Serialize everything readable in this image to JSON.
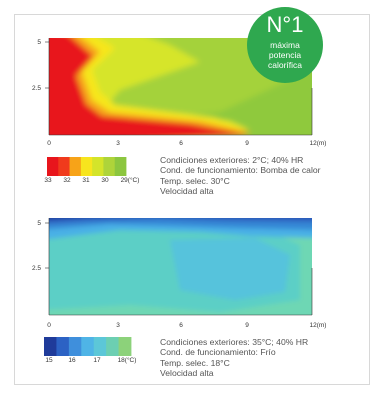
{
  "badge": {
    "number": "N°1",
    "lines": [
      "máxima",
      "potencia",
      "calorífica"
    ]
  },
  "chart_data": [
    {
      "type": "heatmap",
      "title": "",
      "xlabel": "",
      "ylabel": "",
      "xlim": [
        0,
        12
      ],
      "ylim": [
        0,
        5.5
      ],
      "x_ticks": [
        "0",
        "3",
        "6",
        "9",
        "12(m)"
      ],
      "y_ticks": [
        "2.5",
        "5"
      ],
      "legend": {
        "labels": [
          "33",
          "32",
          "31",
          "30",
          "29(°C)"
        ],
        "colors": [
          "#e8151c",
          "#f03a1c",
          "#f7a318",
          "#f7e51e",
          "#d4e42a",
          "#aed43a",
          "#8cc63f"
        ]
      },
      "description": [
        "Condiciones exteriores: 2°C; 40% HR",
        "Cond. de funcionamiento: Bomba de calor",
        "Temp. selec. 30°C",
        "Velocidad alta"
      ]
    },
    {
      "type": "heatmap",
      "title": "",
      "xlabel": "",
      "ylabel": "",
      "xlim": [
        0,
        12
      ],
      "ylim": [
        0,
        5.5
      ],
      "x_ticks": [
        "0",
        "3",
        "6",
        "9",
        "12(m)"
      ],
      "y_ticks": [
        "2.5",
        "5"
      ],
      "legend": {
        "labels": [
          "15",
          "16",
          "17",
          "18(°C)"
        ],
        "colors": [
          "#1f3b9a",
          "#2c62c4",
          "#3f8fdc",
          "#4fb4e6",
          "#5cc7d8",
          "#6ccfb2",
          "#8cd27a"
        ]
      },
      "description": [
        "Condiciones exteriores: 35°C; 40% HR",
        "Cond. de funcionamiento: Frío",
        "Temp. selec. 18°C",
        "Velocidad alta"
      ]
    }
  ]
}
